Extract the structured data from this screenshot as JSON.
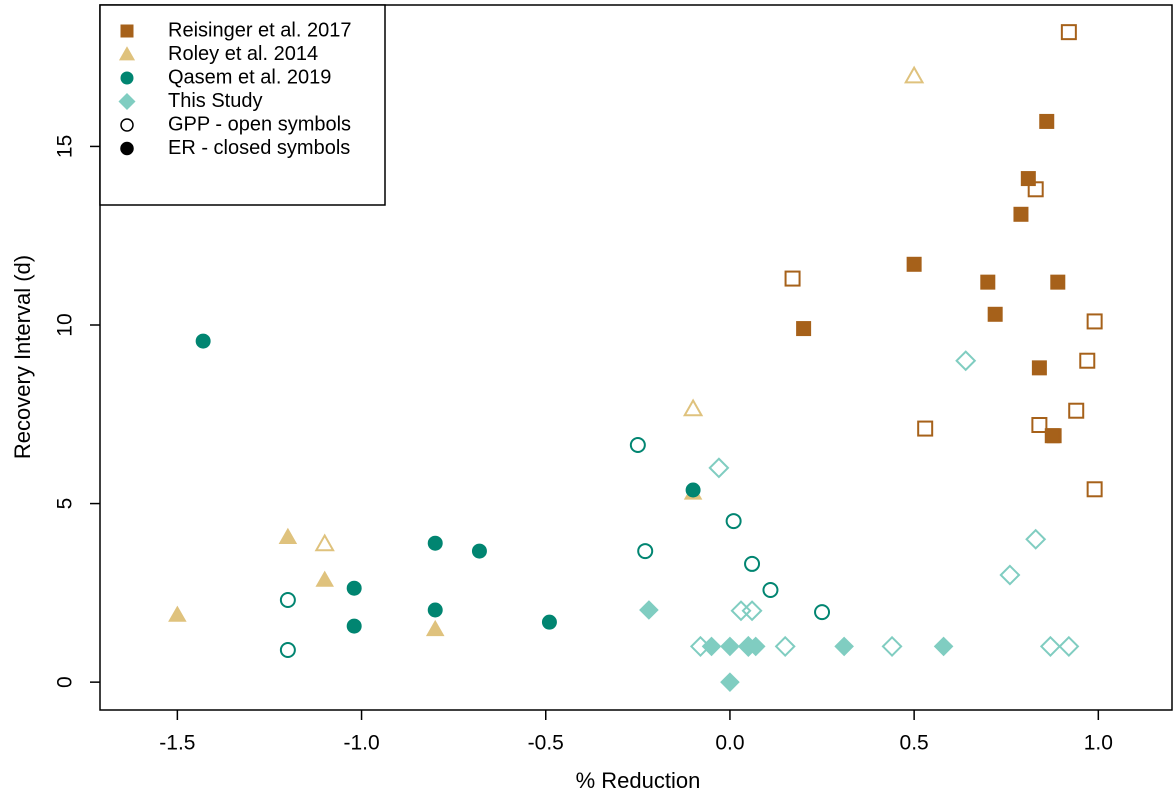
{
  "chart_data": {
    "type": "scatter",
    "x_label": "% Reduction",
    "y_label": "Recovery Interval (d)",
    "xlim": [
      -1.71,
      1.2
    ],
    "ylim": [
      -0.78,
      18.96
    ],
    "xticks": [
      -1.5,
      {
        "value": -1.0,
        "label": "-1.0"
      },
      -0.5,
      {
        "value": 0.0,
        "label": "0.0"
      },
      0.5,
      {
        "value": 1.0,
        "label": "1.0"
      }
    ],
    "yticks": [
      0,
      5,
      10,
      15
    ],
    "legend": "top-left",
    "series": [
      {
        "name": "Reisinger et al. 2017",
        "color": "#a6611a",
        "marker": "square",
        "gpp": {
          "x": [
            0.17,
            0.53,
            0.83,
            0.92,
            0.99,
            0.97,
            0.94,
            0.84,
            0.99
          ],
          "values": [
            11.3,
            7.1,
            13.8,
            18.2,
            10.1,
            9.0,
            7.6,
            7.2,
            5.4
          ]
        },
        "er": {
          "x": [
            0.2,
            0.5,
            0.7,
            0.72,
            0.79,
            0.81,
            0.86,
            0.89,
            0.84,
            0.88,
            0.875
          ],
          "values": [
            9.9,
            11.7,
            11.2,
            10.3,
            13.1,
            14.1,
            15.7,
            11.2,
            8.8,
            6.9,
            6.9
          ]
        }
      },
      {
        "name": "Roley et al. 2014",
        "color": "#dfc27d",
        "marker": "triangle",
        "gpp": {
          "x": [
            -1.1,
            -0.1,
            0.5
          ],
          "values": [
            3.87,
            7.65,
            16.97
          ]
        },
        "er": {
          "x": [
            -1.5,
            -1.2,
            -1.1,
            -0.8,
            -0.1
          ],
          "values": [
            1.88,
            4.06,
            2.86,
            1.48,
            5.3
          ]
        }
      },
      {
        "name": "Qasem et al. 2019",
        "color": "#018571",
        "marker": "circle",
        "gpp": {
          "x": [
            -1.2,
            -1.2,
            -0.25,
            -0.23,
            0.01,
            0.06,
            0.11,
            0.25
          ],
          "values": [
            2.3,
            0.9,
            6.64,
            3.67,
            4.51,
            3.31,
            2.58,
            1.96
          ]
        },
        "er": {
          "x": [
            -1.43,
            -1.02,
            -1.02,
            -0.8,
            -0.8,
            -0.68,
            -0.49,
            -0.1
          ],
          "values": [
            9.55,
            2.63,
            1.57,
            3.89,
            2.02,
            3.67,
            1.68,
            5.38
          ]
        }
      },
      {
        "name": "This Study",
        "color": "#80cdc1",
        "marker": "diamond",
        "gpp": {
          "x": [
            0.64,
            -0.03,
            0.03,
            0.06,
            -0.08,
            0.15,
            0.44,
            0.76,
            0.83,
            0.87,
            0.92,
            0.05
          ],
          "values": [
            9.0,
            6.0,
            2.0,
            2.0,
            1.0,
            1.0,
            1.0,
            3.0,
            4.0,
            1.0,
            1.0,
            1.0
          ]
        },
        "er": {
          "x": [
            -0.22,
            -0.05,
            0.0,
            0.05,
            0.07,
            0.31,
            0.58,
            0.0
          ],
          "values": [
            2.02,
            1.0,
            1.0,
            1.0,
            1.0,
            1.0,
            1.0,
            0.0
          ]
        }
      }
    ],
    "symbol_legend": [
      {
        "label": "GPP - open symbols",
        "filled": false
      },
      {
        "label": "ER - closed symbols",
        "filled": true
      }
    ]
  }
}
